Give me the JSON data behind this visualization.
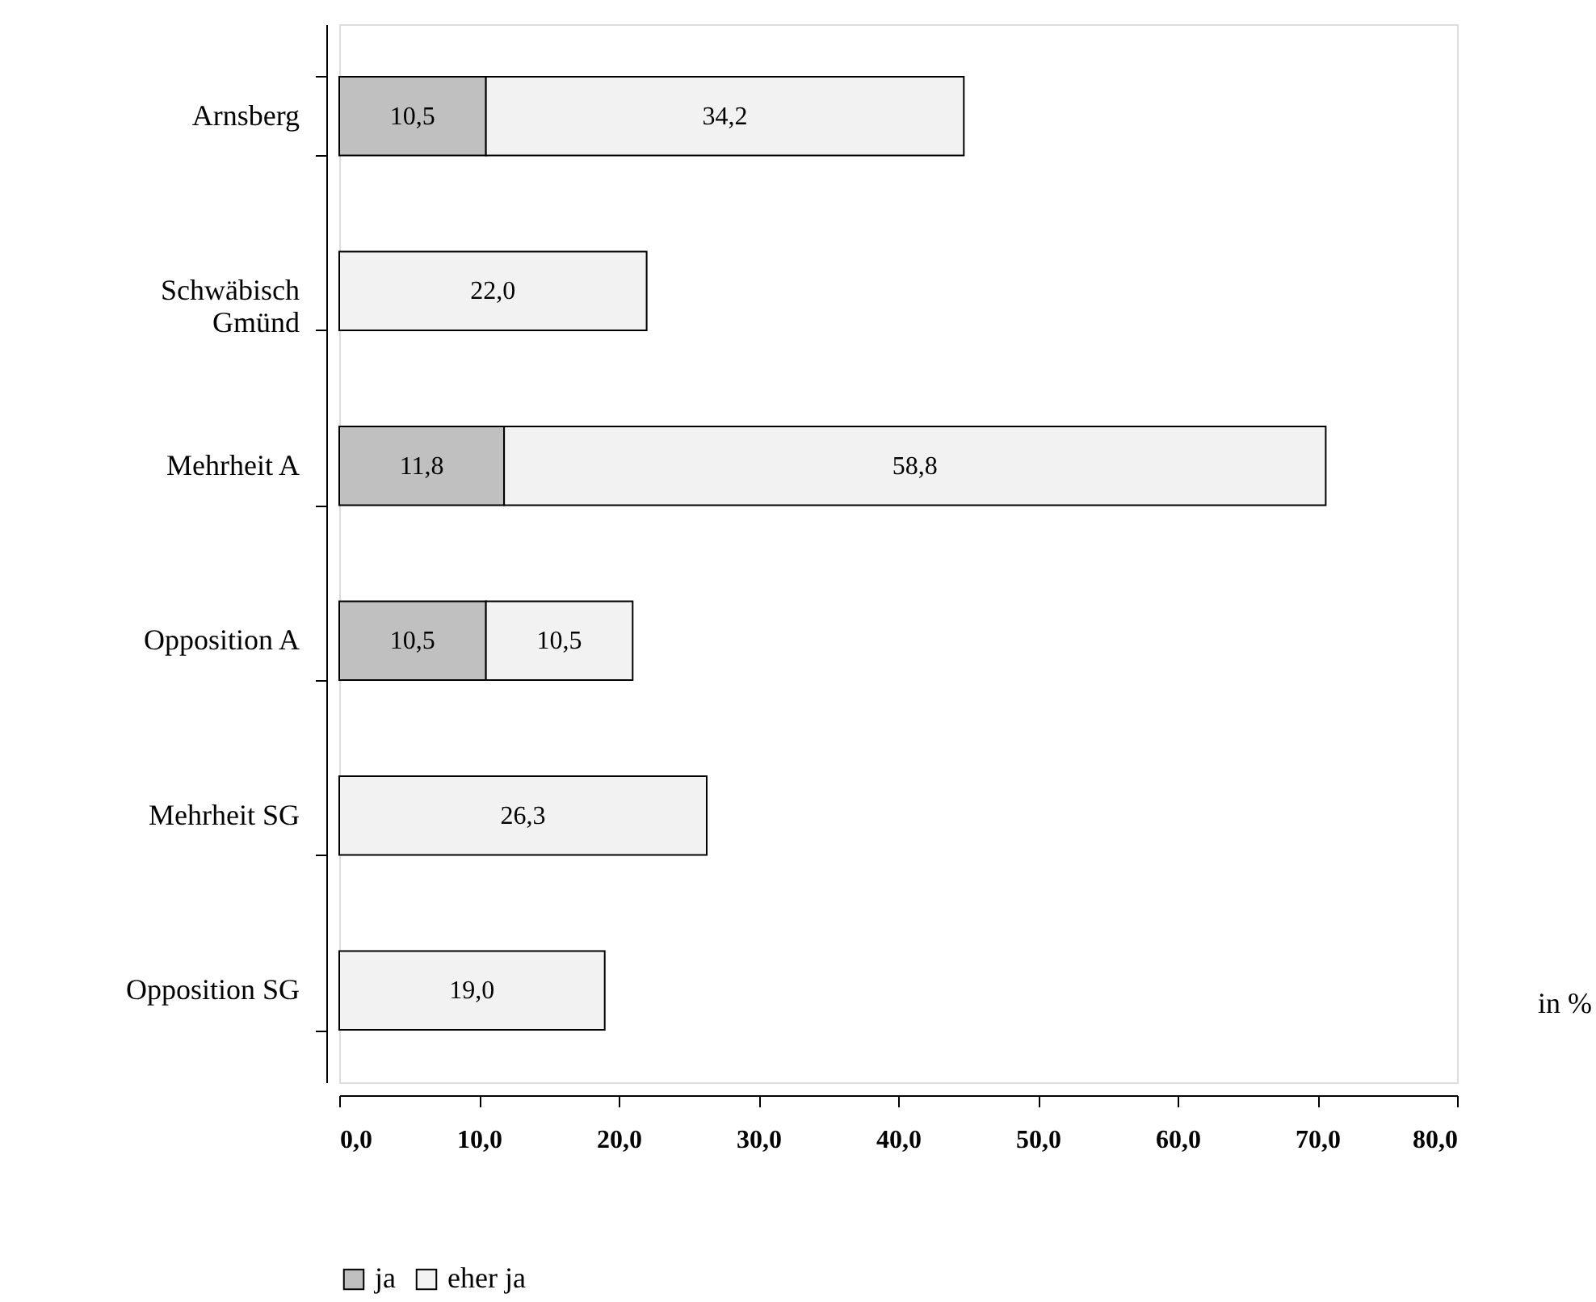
{
  "chart_data": {
    "type": "bar",
    "orientation": "horizontal",
    "stacked": true,
    "categories": [
      "Arnsberg",
      "Schwäbisch\nGmünd",
      "Mehrheit A",
      "Opposition A",
      "Mehrheit SG",
      "Opposition SG"
    ],
    "series": [
      {
        "name": "ja",
        "color": "#c0c0c0",
        "values": [
          10.5,
          null,
          11.8,
          10.5,
          null,
          null
        ],
        "value_labels": [
          "10,5",
          null,
          "11,8",
          "10,5",
          null,
          null
        ]
      },
      {
        "name": "eher ja",
        "color": "#f2f2f2",
        "values": [
          34.2,
          22.0,
          58.8,
          10.5,
          26.3,
          19.0
        ],
        "value_labels": [
          "34,2",
          "22,0",
          "58,8",
          "10,5",
          "26,3",
          "19,0"
        ]
      }
    ],
    "xlim": [
      0,
      80
    ],
    "xticks": [
      {
        "value": 0,
        "label": "0,0"
      },
      {
        "value": 10,
        "label": "10,0"
      },
      {
        "value": 20,
        "label": "20,0"
      },
      {
        "value": 30,
        "label": "30,0"
      },
      {
        "value": 40,
        "label": "40,0"
      },
      {
        "value": 50,
        "label": "50,0"
      },
      {
        "value": 60,
        "label": "60,0"
      },
      {
        "value": 70,
        "label": "70,0"
      },
      {
        "value": 80,
        "label": "80,0"
      }
    ],
    "xlabel": "in %",
    "grid": false,
    "legend": "bottom"
  }
}
